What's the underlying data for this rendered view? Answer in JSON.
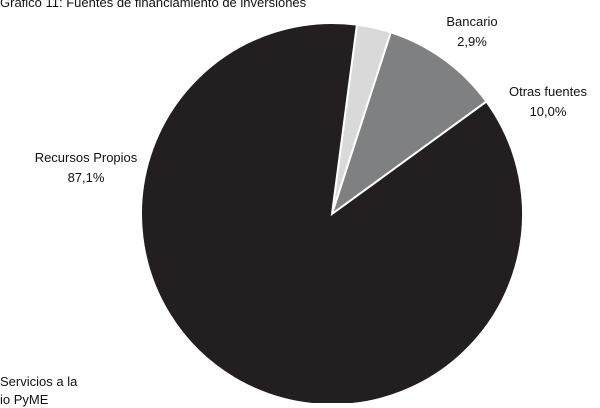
{
  "title": "Gráfico 11: Fuentes de financiamiento de inversiones",
  "chart_data": {
    "type": "pie",
    "slices": [
      {
        "label": "Recursos Propios",
        "value": 87.1,
        "value_label": "87,1%",
        "color": "#231f20"
      },
      {
        "label": "Bancario",
        "value": 2.9,
        "value_label": "2,9%",
        "color": "#d9d9d9"
      },
      {
        "label": "Otras fuentes",
        "value": 10.0,
        "value_label": "10,0%",
        "color": "#7f8081"
      }
    ],
    "legend": "none",
    "grid": false
  },
  "footnote": "Servicios a la\nio PyME"
}
